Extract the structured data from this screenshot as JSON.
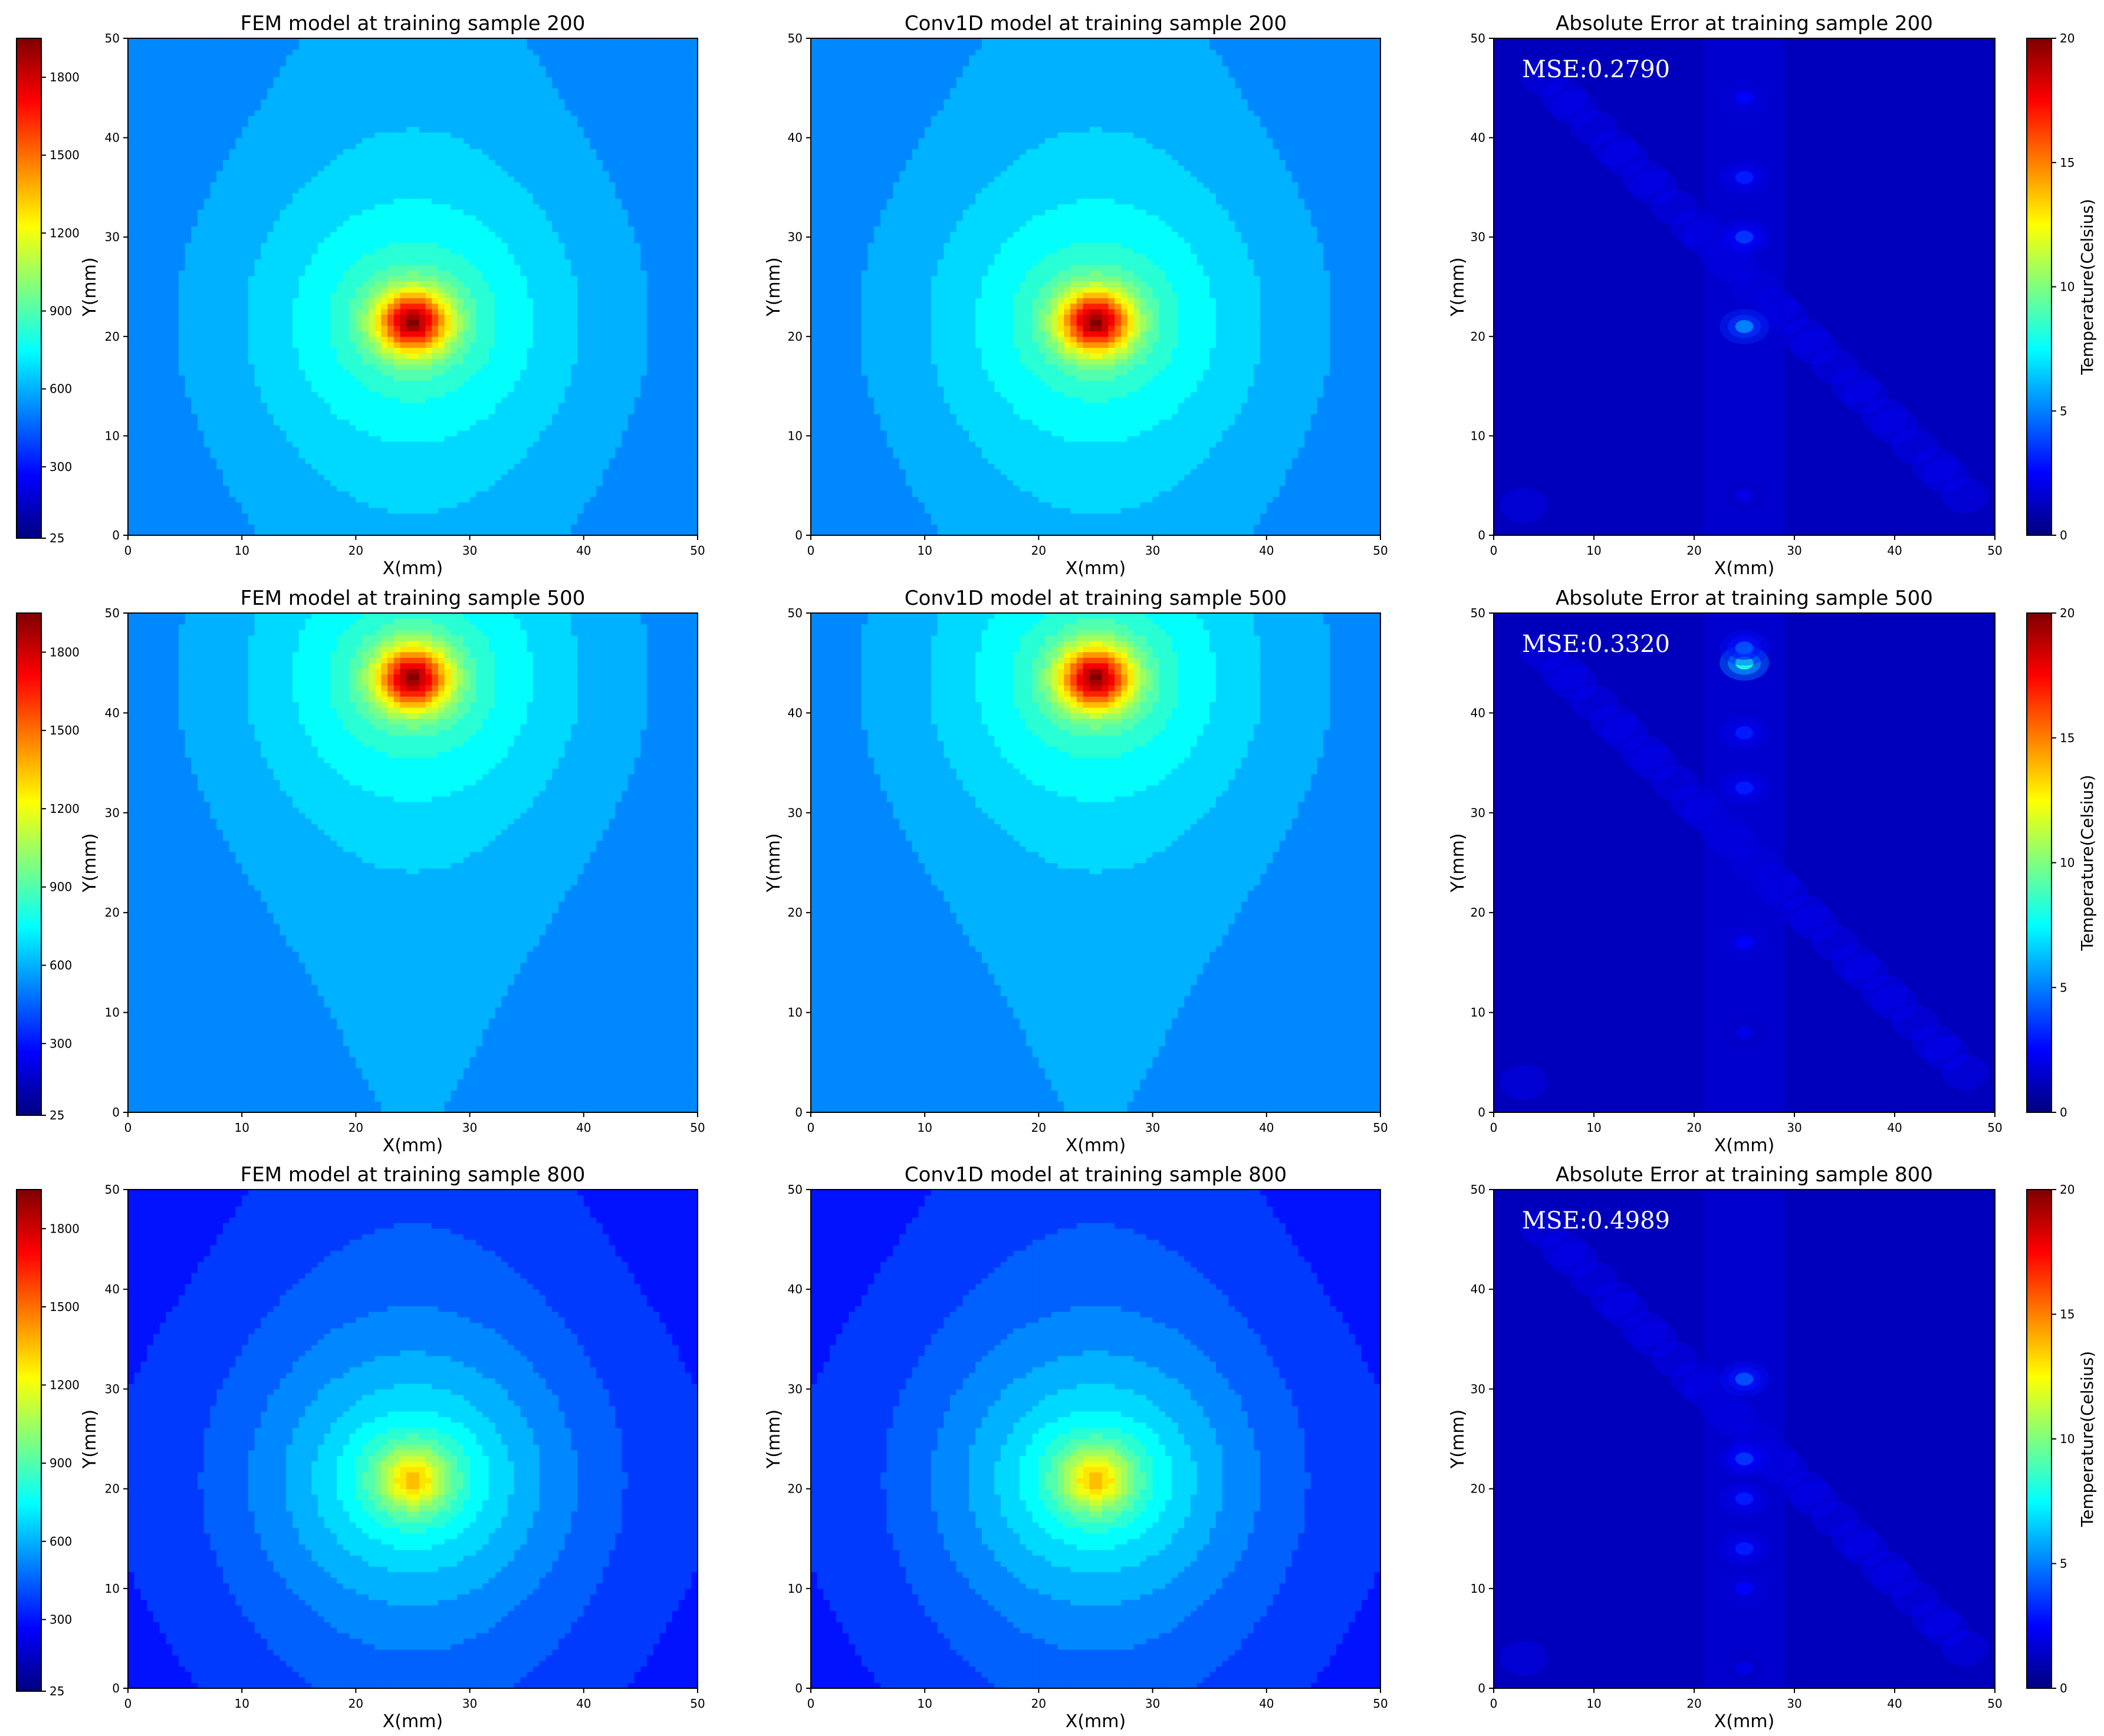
{
  "figure": {
    "title": "",
    "colors": {
      "jet": [
        "#00007f",
        "#0000ff",
        "#007fff",
        "#00ffff",
        "#7fff7f",
        "#ffff00",
        "#ff7f00",
        "#ff0000",
        "#7f0000"
      ],
      "axis": "#000000",
      "mse_text": "#ffffff"
    },
    "left_colorbar": {
      "ticks": [
        "25",
        "300",
        "600",
        "900",
        "1200",
        "1500",
        "1800"
      ],
      "tick_values": [
        25,
        300,
        600,
        900,
        1200,
        1500,
        1800
      ],
      "min": 25,
      "max": 1950,
      "label": ""
    },
    "right_colorbar": {
      "ticks": [
        "0",
        "5",
        "10",
        "15",
        "20"
      ],
      "tick_values": [
        0,
        5,
        10,
        15,
        20
      ],
      "min": 0,
      "max": 20,
      "label": "Temperature(Celsius)"
    }
  },
  "chart_data": [
    {
      "type": "heatmap",
      "kind": "fem",
      "title": "FEM model at training sample 200",
      "xlabel": "X(mm)",
      "ylabel": "Y(mm)",
      "xlim": [
        0,
        50
      ],
      "ylim": [
        0,
        50
      ],
      "xticks": [
        "0",
        "10",
        "20",
        "30",
        "40",
        "50"
      ],
      "yticks": [
        "0",
        "10",
        "20",
        "30",
        "40",
        "50"
      ],
      "hotspot": {
        "x": 25,
        "y": 21.5,
        "peak": 1900,
        "background": 520
      },
      "colorbar": "left"
    },
    {
      "type": "heatmap",
      "kind": "conv1d",
      "title": "Conv1D model at training sample 200",
      "xlabel": "X(mm)",
      "ylabel": "Y(mm)",
      "xlim": [
        0,
        50
      ],
      "ylim": [
        0,
        50
      ],
      "xticks": [
        "0",
        "10",
        "20",
        "30",
        "40",
        "50"
      ],
      "yticks": [
        "0",
        "10",
        "20",
        "30",
        "40",
        "50"
      ],
      "hotspot": {
        "x": 25,
        "y": 21.5,
        "peak": 1900,
        "background": 520
      }
    },
    {
      "type": "heatmap",
      "kind": "error",
      "title": "Absolute Error at training sample 200",
      "annotation": "MSE:0.2790",
      "xlabel": "X(mm)",
      "ylabel": "Y(mm)",
      "xlim": [
        0,
        50
      ],
      "ylim": [
        0,
        50
      ],
      "xticks": [
        "0",
        "10",
        "20",
        "30",
        "40",
        "50"
      ],
      "yticks": [
        "0",
        "10",
        "20",
        "30",
        "40",
        "50"
      ],
      "error_spots": [
        [
          25,
          21,
          5
        ],
        [
          25,
          30,
          3.5
        ],
        [
          25,
          36,
          3
        ],
        [
          25,
          44,
          2.5
        ],
        [
          25,
          4,
          2
        ]
      ],
      "colorbar": "right"
    },
    {
      "type": "heatmap",
      "kind": "fem",
      "title": "FEM model at training sample 500",
      "xlabel": "X(mm)",
      "ylabel": "Y(mm)",
      "xlim": [
        0,
        50
      ],
      "ylim": [
        0,
        50
      ],
      "xticks": [
        "0",
        "10",
        "20",
        "30",
        "40",
        "50"
      ],
      "yticks": [
        "0",
        "10",
        "20",
        "30",
        "40",
        "50"
      ],
      "hotspot": {
        "x": 25,
        "y": 43.5,
        "peak": 1900,
        "background": 520
      },
      "colorbar": "left"
    },
    {
      "type": "heatmap",
      "kind": "conv1d",
      "title": "Conv1D model at training sample 500",
      "xlabel": "X(mm)",
      "ylabel": "Y(mm)",
      "xlim": [
        0,
        50
      ],
      "ylim": [
        0,
        50
      ],
      "xticks": [
        "0",
        "10",
        "20",
        "30",
        "40",
        "50"
      ],
      "yticks": [
        "0",
        "10",
        "20",
        "30",
        "40",
        "50"
      ],
      "hotspot": {
        "x": 25,
        "y": 43.5,
        "peak": 1900,
        "background": 520
      }
    },
    {
      "type": "heatmap",
      "kind": "error",
      "title": "Absolute Error at training sample 500",
      "annotation": "MSE:0.3320",
      "xlabel": "X(mm)",
      "ylabel": "Y(mm)",
      "xlim": [
        0,
        50
      ],
      "ylim": [
        0,
        50
      ],
      "xticks": [
        "0",
        "10",
        "20",
        "30",
        "40",
        "50"
      ],
      "yticks": [
        "0",
        "10",
        "20",
        "30",
        "40",
        "50"
      ],
      "error_spots": [
        [
          25,
          45,
          8
        ],
        [
          25,
          46.5,
          4
        ],
        [
          25,
          38,
          3
        ],
        [
          25,
          32.5,
          3
        ],
        [
          25,
          17,
          2.5
        ],
        [
          25,
          8,
          2
        ]
      ],
      "colorbar": "right"
    },
    {
      "type": "heatmap",
      "kind": "fem",
      "title": "FEM model at training sample 800",
      "xlabel": "X(mm)",
      "ylabel": "Y(mm)",
      "xlim": [
        0,
        50
      ],
      "ylim": [
        0,
        50
      ],
      "xticks": [
        "0",
        "10",
        "20",
        "30",
        "40",
        "50"
      ],
      "yticks": [
        "0",
        "10",
        "20",
        "30",
        "40",
        "50"
      ],
      "hotspot": {
        "x": 25,
        "y": 21,
        "peak": 1350,
        "background": 310
      },
      "colorbar": "left"
    },
    {
      "type": "heatmap",
      "kind": "conv1d",
      "title": "Conv1D model at training sample 800",
      "xlabel": "X(mm)",
      "ylabel": "Y(mm)",
      "xlim": [
        0,
        50
      ],
      "ylim": [
        0,
        50
      ],
      "xticks": [
        "0",
        "10",
        "20",
        "30",
        "40",
        "50"
      ],
      "yticks": [
        "0",
        "10",
        "20",
        "30",
        "40",
        "50"
      ],
      "hotspot": {
        "x": 25,
        "y": 21,
        "peak": 1350,
        "background": 310
      }
    },
    {
      "type": "heatmap",
      "kind": "error",
      "title": "Absolute Error at training sample 800",
      "annotation": "MSE:0.4989",
      "xlabel": "X(mm)",
      "ylabel": "Y(mm)",
      "xlim": [
        0,
        50
      ],
      "ylim": [
        0,
        50
      ],
      "xticks": [
        "0",
        "10",
        "20",
        "30",
        "40",
        "50"
      ],
      "yticks": [
        "0",
        "10",
        "20",
        "30",
        "40",
        "50"
      ],
      "error_spots": [
        [
          25,
          31,
          4
        ],
        [
          25,
          23,
          3.5
        ],
        [
          25,
          19,
          3
        ],
        [
          25,
          14,
          3
        ],
        [
          25,
          10,
          2.5
        ],
        [
          25,
          2,
          2
        ]
      ],
      "colorbar": "right"
    }
  ]
}
